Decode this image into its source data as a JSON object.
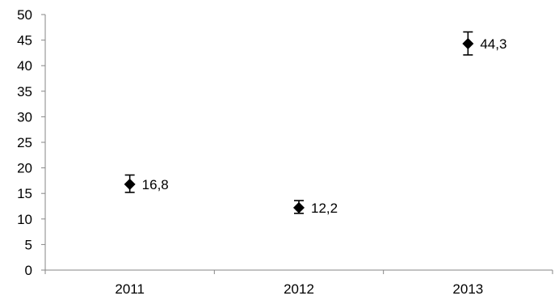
{
  "chart_data": {
    "type": "scatter",
    "title": "",
    "xlabel": "",
    "ylabel": "",
    "categories": [
      "2011",
      "2012",
      "2013"
    ],
    "values": [
      16.8,
      12.2,
      44.3
    ],
    "error_low": [
      15.2,
      11.1,
      42.1
    ],
    "error_high": [
      18.6,
      13.6,
      46.6
    ],
    "data_labels": [
      "16,8",
      "12,2",
      "44,3"
    ],
    "ylim": [
      0,
      50
    ],
    "yticks": [
      0,
      5,
      10,
      15,
      20,
      25,
      30,
      35,
      40,
      45,
      50
    ],
    "grid": false,
    "legend": "none",
    "marker": "diamond",
    "color": "#000000"
  }
}
